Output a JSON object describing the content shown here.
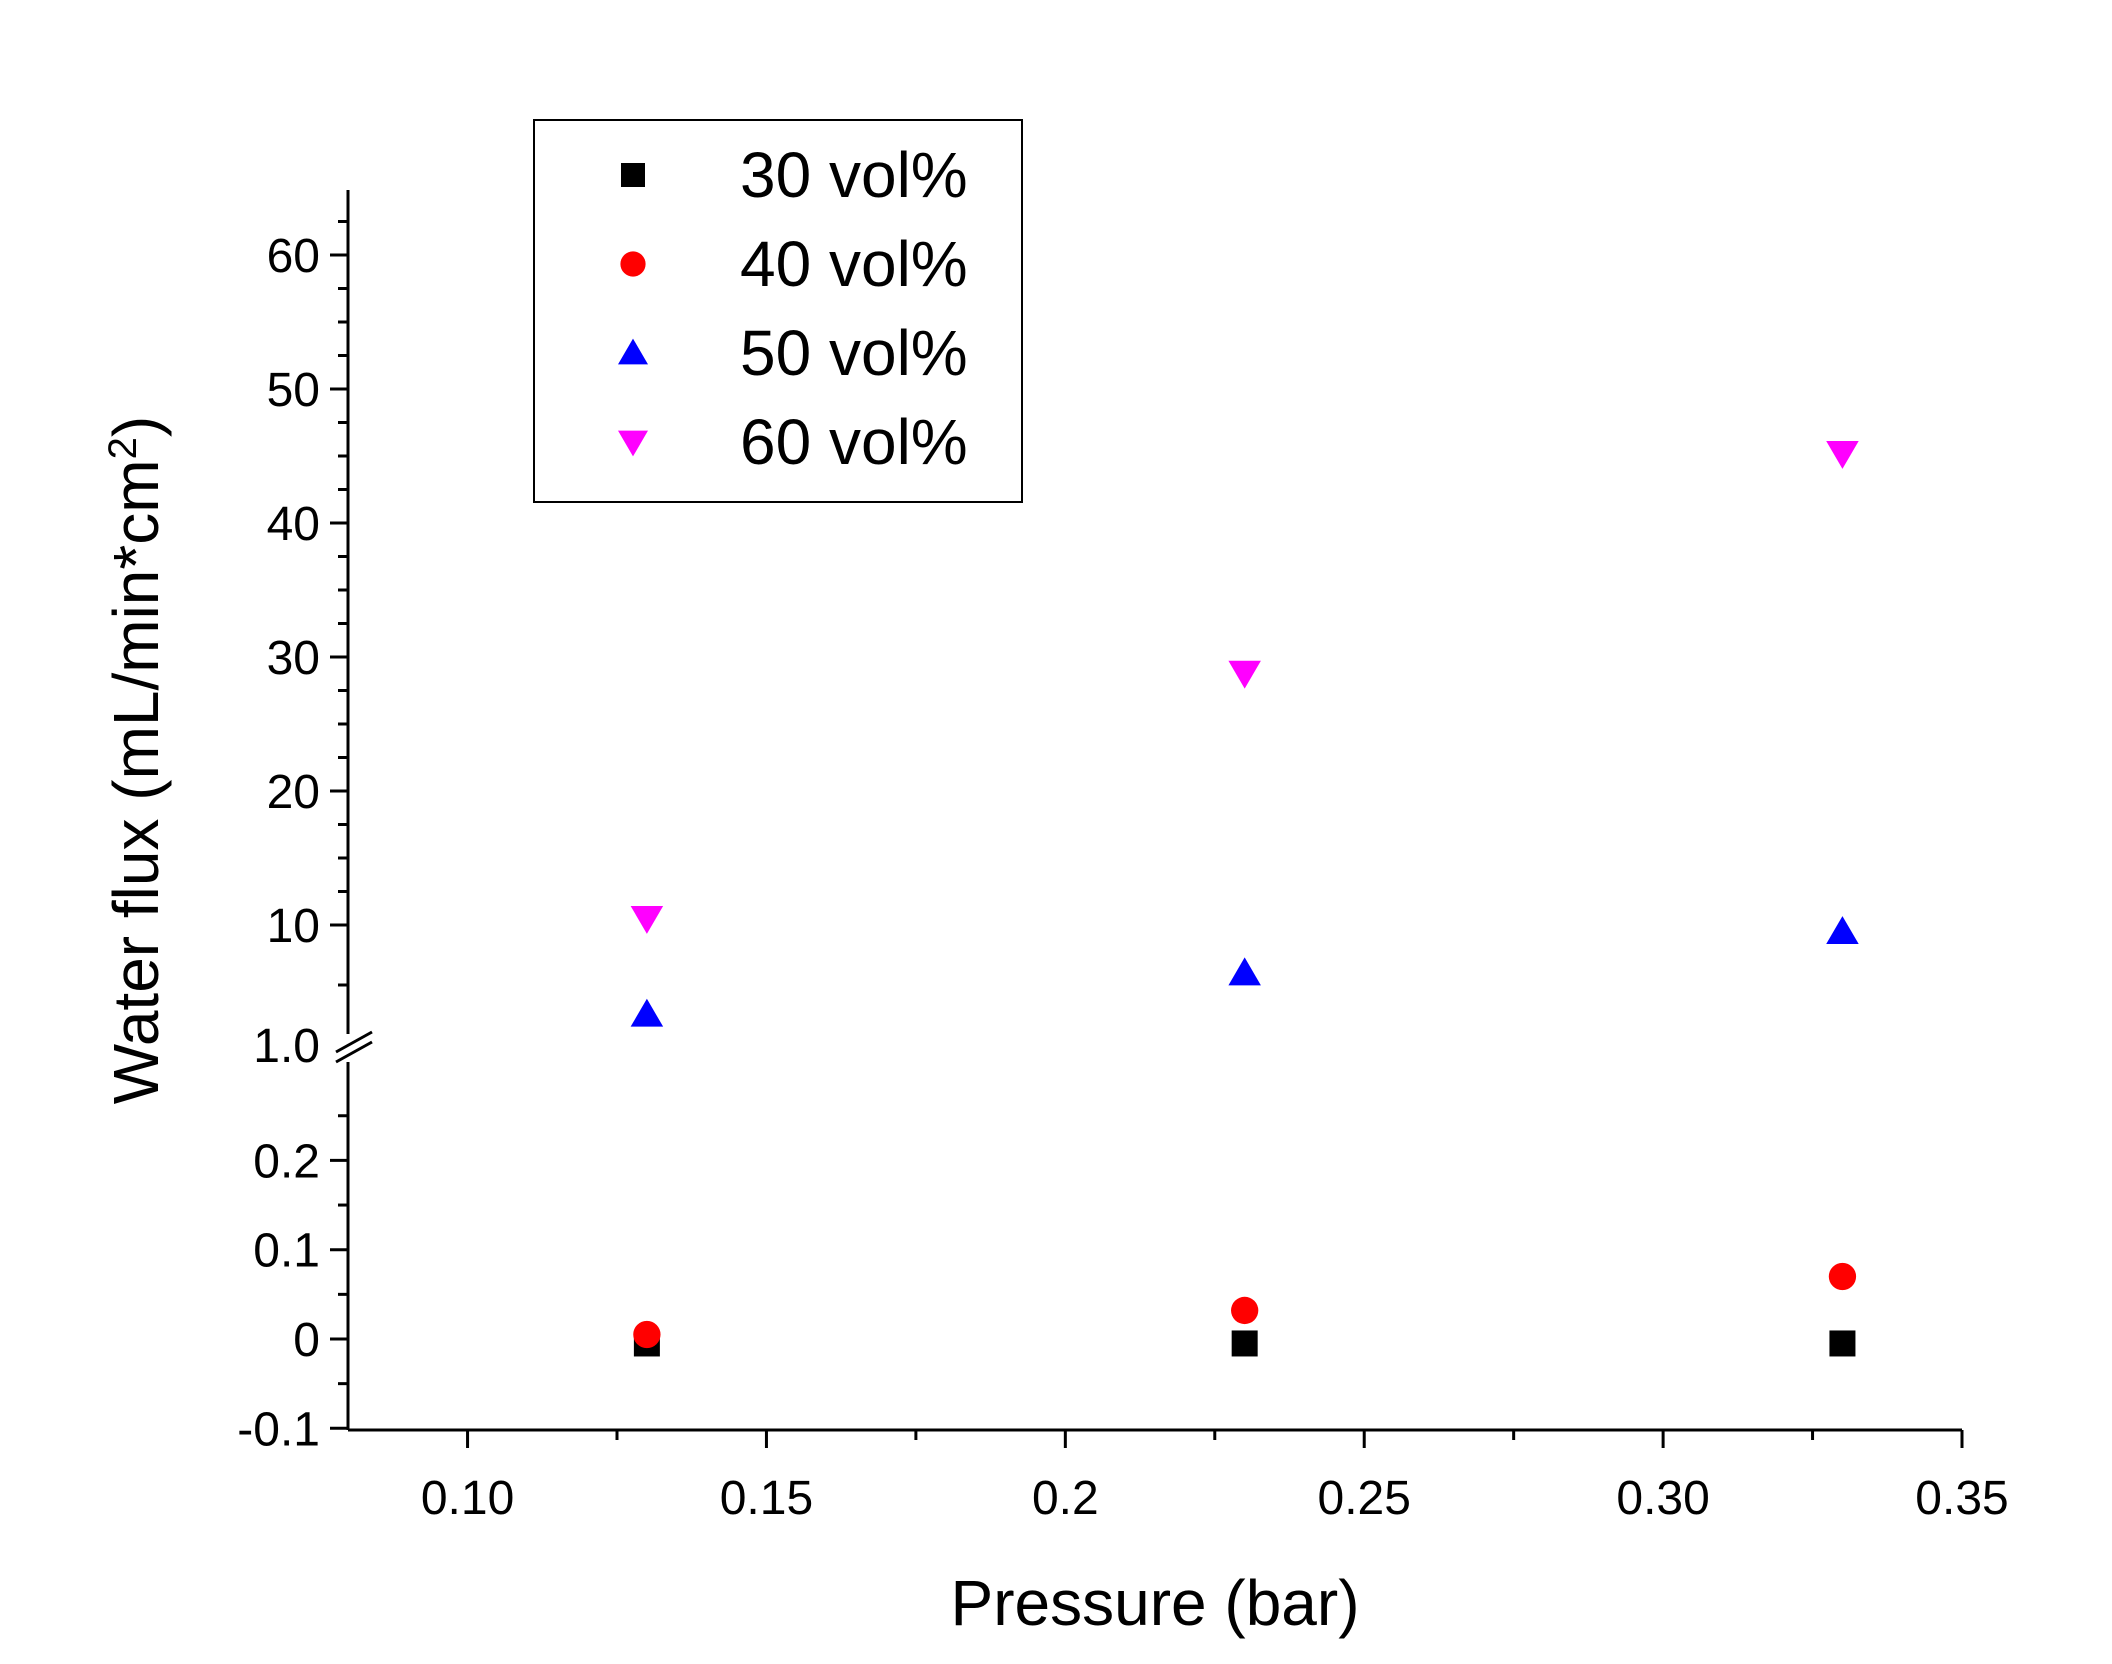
{
  "chart_data": {
    "type": "scatter",
    "title": "",
    "xlabel": "Pressure (bar)",
    "ylabel": "Water flux (mL/min*cm",
    "ylabel_sup": "2",
    "ylabel_close": ")",
    "xlim": [
      0.08,
      0.35
    ],
    "x_ticks": [
      {
        "value": 0.1,
        "label": "0.10"
      },
      {
        "value": 0.15,
        "label": "0.15"
      },
      {
        "value": 0.2,
        "label": "0.2"
      },
      {
        "value": 0.25,
        "label": "0.25"
      },
      {
        "value": 0.3,
        "label": "0.30"
      },
      {
        "value": 0.35,
        "label": "0.35"
      }
    ],
    "y_break": {
      "lower_range": [
        -0.1,
        0.3
      ],
      "upper_range": [
        1.0,
        65
      ],
      "break_at_label": "1.0"
    },
    "y_ticks_lower": [
      {
        "value": -0.1,
        "label": "-0.1"
      },
      {
        "value": 0.0,
        "label": "0"
      },
      {
        "value": 0.1,
        "label": "0.1"
      },
      {
        "value": 0.2,
        "label": "0.2"
      }
    ],
    "y_ticks_upper": [
      {
        "value": 1.0,
        "label": "1.0"
      },
      {
        "value": 10,
        "label": "10"
      },
      {
        "value": 20,
        "label": "20"
      },
      {
        "value": 30,
        "label": "30"
      },
      {
        "value": 40,
        "label": "40"
      },
      {
        "value": 50,
        "label": "50"
      },
      {
        "value": 60,
        "label": "60"
      }
    ],
    "legend_position": "top-left",
    "series": [
      {
        "name": "30 vol%",
        "marker": "square",
        "color": "#000000",
        "x": [
          0.13,
          0.23,
          0.33
        ],
        "y": [
          -0.005,
          -0.005,
          -0.005
        ]
      },
      {
        "name": "40 vol%",
        "marker": "circle",
        "color": "#ff0000",
        "x": [
          0.13,
          0.23,
          0.33
        ],
        "y": [
          0.005,
          0.032,
          0.07
        ]
      },
      {
        "name": "50 vol%",
        "marker": "triangle-up",
        "color": "#0000ff",
        "x": [
          0.13,
          0.23,
          0.33
        ],
        "y": [
          3.3,
          6.4,
          9.5
        ]
      },
      {
        "name": "60 vol%",
        "marker": "triangle-down",
        "color": "#ff00ff",
        "x": [
          0.13,
          0.23,
          0.33
        ],
        "y": [
          10.5,
          28.8,
          45.2
        ]
      }
    ]
  }
}
